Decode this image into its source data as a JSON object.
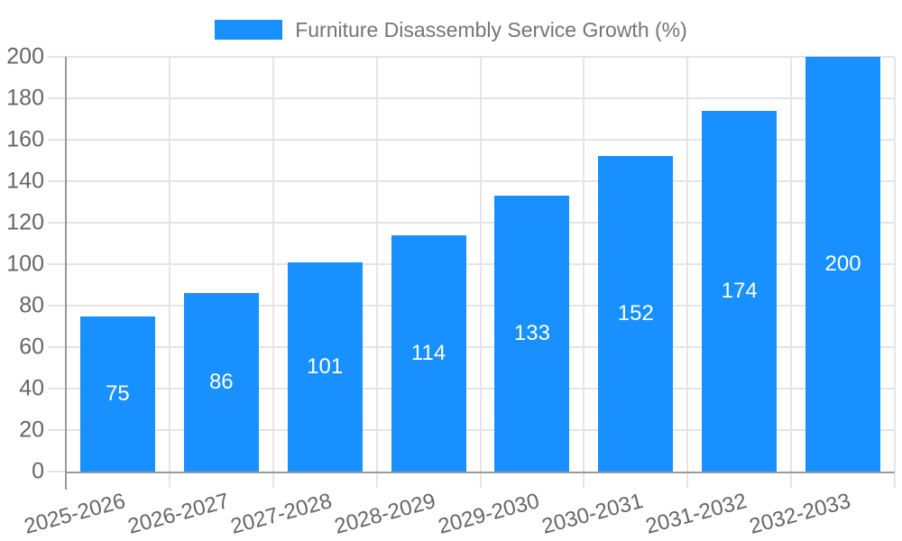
{
  "chart_data": {
    "type": "bar",
    "title": "Furniture Disassembly Service Growth (%)",
    "legend": {
      "position": "top-center",
      "items": [
        {
          "label": "Furniture Disassembly Service Growth (%)",
          "swatch_color": "#1890FF"
        }
      ]
    },
    "categories": [
      "2025-2026",
      "2026-2027",
      "2027-2028",
      "2028-2029",
      "2029-2030",
      "2030-2031",
      "2031-2032",
      "2032-2033"
    ],
    "values": [
      75,
      86,
      101,
      114,
      133,
      152,
      174,
      200
    ],
    "xlabel": "",
    "ylabel": "",
    "ylim": [
      0,
      200
    ],
    "yticks": [
      0,
      20,
      40,
      60,
      80,
      100,
      120,
      140,
      160,
      180,
      200
    ],
    "grid": "horizontal and vertical light gridlines visible",
    "value_label_position": "inside-center",
    "x_label_rotation_deg": -15,
    "colors": {
      "bar": "#1890FF",
      "value_label": "#FFFFFF",
      "axis_label": "#666666",
      "legend_text": "#757575",
      "grid_line": "#E5E5E5",
      "axis_line": "#999999",
      "background": "#FFFFFF"
    }
  }
}
